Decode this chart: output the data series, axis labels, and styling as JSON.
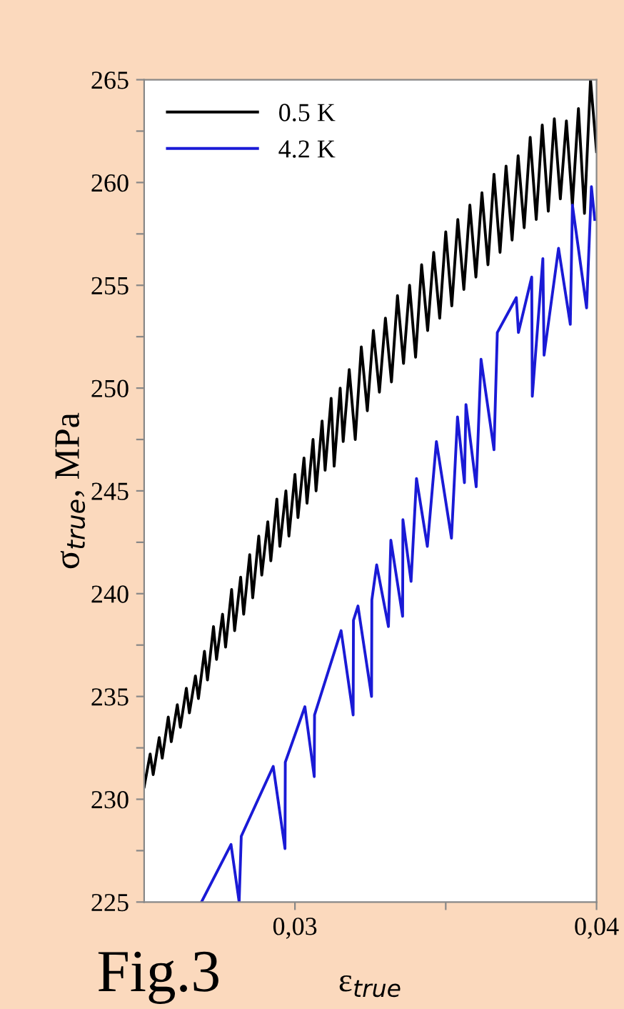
{
  "chart_data": {
    "type": "line",
    "xlabel": "ε$_{true}$",
    "ylabel": "σ$_{true}$, MPa",
    "annotations": [
      "Fig.3"
    ],
    "xlim": [
      0.025,
      0.04
    ],
    "ylim": [
      225,
      265
    ],
    "xticks": [
      {
        "value": 0.03,
        "label": "0,03"
      },
      {
        "value": 0.035,
        "label": null
      },
      {
        "value": 0.04,
        "label": "0,04"
      }
    ],
    "yticks": [
      225,
      {
        "value": 227.5,
        "label": null
      },
      230,
      {
        "value": 232.5,
        "label": null
      },
      235,
      {
        "value": 237.5,
        "label": null
      },
      240,
      {
        "value": 242.5,
        "label": null
      },
      245,
      {
        "value": 247.5,
        "label": null
      },
      250,
      {
        "value": 252.5,
        "label": null
      },
      255,
      {
        "value": 257.5,
        "label": null
      },
      260,
      {
        "value": 262.5,
        "label": null
      },
      265
    ],
    "legend": "top left",
    "grid": false,
    "marker": "none",
    "line_style": "solid",
    "series": [
      {
        "name": "0.5 K",
        "color": "#000000",
        "x": [
          0.025,
          0.0252,
          0.0253,
          0.0255,
          0.0256,
          0.0258,
          0.0259,
          0.0261,
          0.0262,
          0.0264,
          0.0265,
          0.0267,
          0.0268,
          0.027,
          0.0271,
          0.0273,
          0.0274,
          0.0276,
          0.0277,
          0.0279,
          0.028,
          0.0282,
          0.0283,
          0.0285,
          0.0286,
          0.0288,
          0.0289,
          0.0291,
          0.0292,
          0.0294,
          0.0295,
          0.0297,
          0.0298,
          0.03,
          0.0301,
          0.0303,
          0.0304,
          0.0306,
          0.0307,
          0.0309,
          0.031,
          0.0312,
          0.0313,
          0.0315,
          0.0316,
          0.0318,
          0.032,
          0.0322,
          0.0324,
          0.0326,
          0.0328,
          0.033,
          0.0332,
          0.0334,
          0.0336,
          0.0338,
          0.034,
          0.0342,
          0.0344,
          0.0346,
          0.0348,
          0.035,
          0.0352,
          0.0354,
          0.0356,
          0.0358,
          0.036,
          0.0362,
          0.0364,
          0.0366,
          0.0368,
          0.037,
          0.0372,
          0.0374,
          0.0376,
          0.0378,
          0.038,
          0.0382,
          0.0384,
          0.0386,
          0.0388,
          0.039,
          0.0392,
          0.0394,
          0.0396,
          0.0398,
          0.04
        ],
        "values": [
          230.6,
          232.2,
          231.2,
          233.0,
          232.0,
          234.0,
          232.8,
          234.6,
          233.5,
          235.4,
          234.2,
          236.0,
          234.9,
          237.2,
          235.8,
          238.4,
          236.8,
          239.0,
          237.4,
          240.2,
          238.2,
          240.8,
          239.0,
          241.9,
          239.8,
          242.8,
          240.9,
          243.5,
          241.6,
          244.6,
          242.3,
          245.0,
          242.8,
          245.8,
          243.7,
          246.6,
          244.4,
          247.5,
          245.0,
          248.4,
          246.0,
          249.5,
          246.2,
          250.0,
          247.4,
          250.9,
          247.5,
          252.0,
          248.9,
          252.8,
          249.8,
          253.4,
          250.3,
          254.5,
          251.2,
          255.0,
          251.5,
          256.0,
          252.8,
          256.6,
          253.4,
          257.6,
          254.0,
          258.2,
          254.8,
          258.9,
          255.4,
          259.5,
          256.0,
          260.4,
          256.6,
          260.8,
          257.2,
          261.3,
          257.8,
          262.2,
          258.2,
          262.8,
          258.6,
          263.1,
          259.2,
          263.0,
          258.9,
          263.6,
          258.5,
          265.0,
          261.5
        ]
      },
      {
        "name": "4.2 K",
        "color": "#1a1ad6",
        "x": [
          0.0269,
          0.02788,
          0.02815,
          0.02822,
          0.02928,
          0.02967,
          0.02968,
          0.03033,
          0.03064,
          0.03065,
          0.03153,
          0.03193,
          0.03194,
          0.03209,
          0.03254,
          0.03255,
          0.03271,
          0.0331,
          0.03318,
          0.03357,
          0.03358,
          0.03385,
          0.03403,
          0.03439,
          0.03469,
          0.03519,
          0.03539,
          0.03562,
          0.03567,
          0.03601,
          0.03617,
          0.0366,
          0.03671,
          0.03734,
          0.03741,
          0.03785,
          0.03787,
          0.03822,
          0.03826,
          0.03874,
          0.03913,
          0.0392,
          0.03967,
          0.03983,
          0.03994
        ],
        "values": [
          225.0,
          227.8,
          225.0,
          228.2,
          231.6,
          227.6,
          231.8,
          234.5,
          231.1,
          234.1,
          238.2,
          234.1,
          238.7,
          239.4,
          235.0,
          239.7,
          241.4,
          238.4,
          242.6,
          238.9,
          243.6,
          240.6,
          245.6,
          242.3,
          247.4,
          242.7,
          248.6,
          245.4,
          249.2,
          245.2,
          251.4,
          247.0,
          252.7,
          254.4,
          252.7,
          255.4,
          249.6,
          256.3,
          251.6,
          256.8,
          253.1,
          258.9,
          253.9,
          259.8,
          258.2
        ]
      }
    ]
  }
}
